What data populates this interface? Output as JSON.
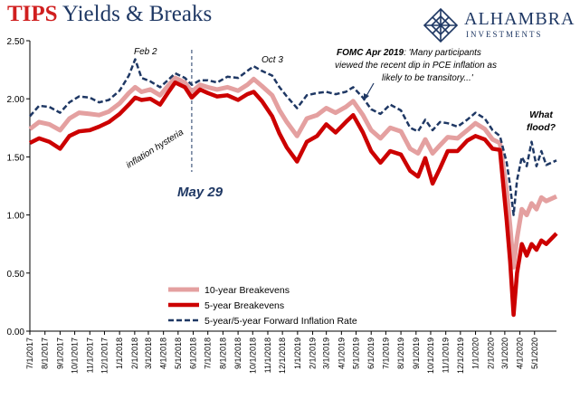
{
  "title": {
    "part1": "TIPS",
    "part2": "Yields & Breaks"
  },
  "logo": {
    "name": "ALHAMBRA",
    "sub": "INVESTMENTS",
    "icon": "diamond-lattice-icon"
  },
  "colors": {
    "s10": "#e4a0a0",
    "s5": "#cc0000",
    "s5y5y": "#1f3864",
    "axis": "#000000",
    "annot": "#1f3864"
  },
  "chart_data": {
    "type": "line",
    "ylim": [
      0,
      2.5
    ],
    "yticks": [
      "0.00",
      "0.50",
      "1.00",
      "1.50",
      "2.00",
      "2.50"
    ],
    "xticks": [
      "7/1/2017",
      "8/1/2017",
      "9/1/2017",
      "10/1/2017",
      "11/1/2017",
      "12/1/2017",
      "1/1/2018",
      "2/1/2018",
      "3/1/2018",
      "4/1/2018",
      "5/1/2018",
      "6/1/2018",
      "7/1/2018",
      "8/1/2018",
      "9/1/2018",
      "10/1/2018",
      "11/1/2018",
      "12/1/2018",
      "1/1/2019",
      "2/1/2019",
      "3/1/2019",
      "4/1/2019",
      "5/1/2019",
      "6/1/2019",
      "7/1/2019",
      "8/1/2019",
      "9/1/2019",
      "10/1/2019",
      "11/1/2019",
      "12/1/2019",
      "1/1/2020",
      "2/1/2020",
      "3/1/2020",
      "4/1/2020",
      "5/1/2020"
    ],
    "x_end": "2020-06-15",
    "series": [
      {
        "name": "10-year Breakevens",
        "style": "solid-light",
        "points": [
          [
            "2017-07-01",
            1.74
          ],
          [
            "2017-07-20",
            1.8
          ],
          [
            "2017-08-10",
            1.78
          ],
          [
            "2017-09-01",
            1.73
          ],
          [
            "2017-09-20",
            1.83
          ],
          [
            "2017-10-10",
            1.88
          ],
          [
            "2017-11-01",
            1.87
          ],
          [
            "2017-11-20",
            1.86
          ],
          [
            "2017-12-10",
            1.89
          ],
          [
            "2018-01-01",
            1.96
          ],
          [
            "2018-01-20",
            2.05
          ],
          [
            "2018-02-02",
            2.1
          ],
          [
            "2018-02-15",
            2.06
          ],
          [
            "2018-03-05",
            2.08
          ],
          [
            "2018-03-25",
            2.03
          ],
          [
            "2018-04-10",
            2.11
          ],
          [
            "2018-04-25",
            2.18
          ],
          [
            "2018-05-15",
            2.14
          ],
          [
            "2018-05-29",
            2.06
          ],
          [
            "2018-06-15",
            2.12
          ],
          [
            "2018-07-01",
            2.1
          ],
          [
            "2018-07-20",
            2.08
          ],
          [
            "2018-08-10",
            2.1
          ],
          [
            "2018-09-01",
            2.07
          ],
          [
            "2018-09-20",
            2.12
          ],
          [
            "2018-10-03",
            2.17
          ],
          [
            "2018-10-20",
            2.11
          ],
          [
            "2018-11-10",
            2.03
          ],
          [
            "2018-11-25",
            1.9
          ],
          [
            "2018-12-10",
            1.8
          ],
          [
            "2018-12-31",
            1.68
          ],
          [
            "2019-01-20",
            1.83
          ],
          [
            "2019-02-10",
            1.86
          ],
          [
            "2019-03-01",
            1.92
          ],
          [
            "2019-03-20",
            1.88
          ],
          [
            "2019-04-10",
            1.93
          ],
          [
            "2019-04-25",
            1.98
          ],
          [
            "2019-05-15",
            1.86
          ],
          [
            "2019-06-01",
            1.73
          ],
          [
            "2019-06-20",
            1.66
          ],
          [
            "2019-07-10",
            1.75
          ],
          [
            "2019-08-01",
            1.72
          ],
          [
            "2019-08-20",
            1.57
          ],
          [
            "2019-09-05",
            1.53
          ],
          [
            "2019-09-20",
            1.65
          ],
          [
            "2019-10-05",
            1.53
          ],
          [
            "2019-10-20",
            1.6
          ],
          [
            "2019-11-05",
            1.67
          ],
          [
            "2019-11-25",
            1.66
          ],
          [
            "2019-12-15",
            1.73
          ],
          [
            "2020-01-01",
            1.79
          ],
          [
            "2020-01-20",
            1.74
          ],
          [
            "2020-02-05",
            1.65
          ],
          [
            "2020-02-20",
            1.62
          ],
          [
            "2020-03-05",
            1.2
          ],
          [
            "2020-03-12",
            0.9
          ],
          [
            "2020-03-19",
            0.55
          ],
          [
            "2020-03-26",
            0.8
          ],
          [
            "2020-04-05",
            1.05
          ],
          [
            "2020-04-15",
            1.0
          ],
          [
            "2020-04-25",
            1.1
          ],
          [
            "2020-05-05",
            1.05
          ],
          [
            "2020-05-15",
            1.15
          ],
          [
            "2020-05-25",
            1.12
          ],
          [
            "2020-06-15",
            1.16
          ]
        ]
      },
      {
        "name": "5-year Breakevens",
        "style": "solid-heavy",
        "points": [
          [
            "2017-07-01",
            1.62
          ],
          [
            "2017-07-20",
            1.66
          ],
          [
            "2017-08-10",
            1.63
          ],
          [
            "2017-09-01",
            1.57
          ],
          [
            "2017-09-20",
            1.68
          ],
          [
            "2017-10-10",
            1.72
          ],
          [
            "2017-11-01",
            1.73
          ],
          [
            "2017-11-20",
            1.76
          ],
          [
            "2017-12-10",
            1.8
          ],
          [
            "2018-01-01",
            1.87
          ],
          [
            "2018-01-20",
            1.95
          ],
          [
            "2018-02-02",
            2.01
          ],
          [
            "2018-02-15",
            1.99
          ],
          [
            "2018-03-05",
            2.0
          ],
          [
            "2018-03-25",
            1.95
          ],
          [
            "2018-04-10",
            2.05
          ],
          [
            "2018-04-25",
            2.14
          ],
          [
            "2018-05-15",
            2.1
          ],
          [
            "2018-05-29",
            2.01
          ],
          [
            "2018-06-15",
            2.08
          ],
          [
            "2018-07-01",
            2.05
          ],
          [
            "2018-07-20",
            2.02
          ],
          [
            "2018-08-10",
            2.03
          ],
          [
            "2018-09-01",
            1.99
          ],
          [
            "2018-09-20",
            2.04
          ],
          [
            "2018-10-03",
            2.06
          ],
          [
            "2018-10-20",
            1.98
          ],
          [
            "2018-11-10",
            1.85
          ],
          [
            "2018-11-25",
            1.7
          ],
          [
            "2018-12-10",
            1.58
          ],
          [
            "2018-12-31",
            1.46
          ],
          [
            "2019-01-20",
            1.63
          ],
          [
            "2019-02-10",
            1.68
          ],
          [
            "2019-03-01",
            1.78
          ],
          [
            "2019-03-20",
            1.71
          ],
          [
            "2019-04-10",
            1.8
          ],
          [
            "2019-04-25",
            1.86
          ],
          [
            "2019-05-15",
            1.71
          ],
          [
            "2019-06-01",
            1.55
          ],
          [
            "2019-06-20",
            1.45
          ],
          [
            "2019-07-10",
            1.55
          ],
          [
            "2019-08-01",
            1.52
          ],
          [
            "2019-08-20",
            1.38
          ],
          [
            "2019-09-05",
            1.33
          ],
          [
            "2019-09-20",
            1.49
          ],
          [
            "2019-10-05",
            1.27
          ],
          [
            "2019-10-20",
            1.4
          ],
          [
            "2019-11-05",
            1.55
          ],
          [
            "2019-11-25",
            1.55
          ],
          [
            "2019-12-15",
            1.64
          ],
          [
            "2020-01-01",
            1.68
          ],
          [
            "2020-01-20",
            1.65
          ],
          [
            "2020-02-05",
            1.57
          ],
          [
            "2020-02-20",
            1.56
          ],
          [
            "2020-03-05",
            0.95
          ],
          [
            "2020-03-12",
            0.6
          ],
          [
            "2020-03-19",
            0.14
          ],
          [
            "2020-03-26",
            0.5
          ],
          [
            "2020-04-05",
            0.75
          ],
          [
            "2020-04-15",
            0.65
          ],
          [
            "2020-04-25",
            0.75
          ],
          [
            "2020-05-05",
            0.7
          ],
          [
            "2020-05-15",
            0.78
          ],
          [
            "2020-05-25",
            0.75
          ],
          [
            "2020-06-15",
            0.84
          ]
        ]
      },
      {
        "name": "5-year/5-year Forward Inflation Rate",
        "style": "dashed",
        "points": [
          [
            "2017-07-01",
            1.85
          ],
          [
            "2017-07-20",
            1.94
          ],
          [
            "2017-08-10",
            1.93
          ],
          [
            "2017-09-01",
            1.88
          ],
          [
            "2017-09-20",
            1.97
          ],
          [
            "2017-10-10",
            2.02
          ],
          [
            "2017-11-01",
            2.01
          ],
          [
            "2017-11-20",
            1.97
          ],
          [
            "2017-12-10",
            1.99
          ],
          [
            "2018-01-01",
            2.07
          ],
          [
            "2018-01-20",
            2.2
          ],
          [
            "2018-02-02",
            2.34
          ],
          [
            "2018-02-15",
            2.18
          ],
          [
            "2018-03-05",
            2.15
          ],
          [
            "2018-03-25",
            2.1
          ],
          [
            "2018-04-10",
            2.16
          ],
          [
            "2018-04-25",
            2.22
          ],
          [
            "2018-05-15",
            2.18
          ],
          [
            "2018-05-29",
            2.12
          ],
          [
            "2018-06-15",
            2.16
          ],
          [
            "2018-07-01",
            2.16
          ],
          [
            "2018-07-20",
            2.14
          ],
          [
            "2018-08-10",
            2.19
          ],
          [
            "2018-09-01",
            2.18
          ],
          [
            "2018-09-20",
            2.24
          ],
          [
            "2018-10-03",
            2.28
          ],
          [
            "2018-10-20",
            2.24
          ],
          [
            "2018-11-10",
            2.2
          ],
          [
            "2018-11-25",
            2.1
          ],
          [
            "2018-12-10",
            2.02
          ],
          [
            "2018-12-31",
            1.92
          ],
          [
            "2019-01-20",
            2.03
          ],
          [
            "2019-02-10",
            2.05
          ],
          [
            "2019-03-01",
            2.06
          ],
          [
            "2019-03-20",
            2.04
          ],
          [
            "2019-04-10",
            2.06
          ],
          [
            "2019-04-25",
            2.1
          ],
          [
            "2019-05-15",
            2.01
          ],
          [
            "2019-06-01",
            1.91
          ],
          [
            "2019-06-20",
            1.87
          ],
          [
            "2019-07-10",
            1.95
          ],
          [
            "2019-08-01",
            1.9
          ],
          [
            "2019-08-20",
            1.75
          ],
          [
            "2019-09-05",
            1.72
          ],
          [
            "2019-09-20",
            1.82
          ],
          [
            "2019-10-05",
            1.73
          ],
          [
            "2019-10-20",
            1.8
          ],
          [
            "2019-11-05",
            1.79
          ],
          [
            "2019-11-25",
            1.76
          ],
          [
            "2019-12-15",
            1.82
          ],
          [
            "2020-01-01",
            1.88
          ],
          [
            "2020-01-20",
            1.83
          ],
          [
            "2020-02-05",
            1.73
          ],
          [
            "2020-02-20",
            1.68
          ],
          [
            "2020-03-05",
            1.45
          ],
          [
            "2020-03-12",
            1.25
          ],
          [
            "2020-03-19",
            1.0
          ],
          [
            "2020-03-26",
            1.3
          ],
          [
            "2020-04-05",
            1.5
          ],
          [
            "2020-04-15",
            1.42
          ],
          [
            "2020-04-25",
            1.63
          ],
          [
            "2020-05-05",
            1.42
          ],
          [
            "2020-05-15",
            1.55
          ],
          [
            "2020-05-25",
            1.43
          ],
          [
            "2020-06-15",
            1.47
          ]
        ]
      }
    ],
    "legend": {
      "position": "bottom-left"
    },
    "vline": {
      "date": "2018-05-29",
      "style": "dashed"
    },
    "annotations": [
      {
        "id": "feb2",
        "text": "Feb 2"
      },
      {
        "id": "oct3",
        "text": "Oct 3"
      },
      {
        "id": "hyst",
        "text": "inflation hysteria"
      },
      {
        "id": "may29",
        "text": "May 29"
      },
      {
        "id": "fomc_label",
        "text": "FOMC Apr 2019"
      },
      {
        "id": "fomc_quote1",
        "text": ": 'Many participants"
      },
      {
        "id": "fomc_quote2",
        "text": "viewed the recent dip in PCE inflation as"
      },
      {
        "id": "fomc_quote3",
        "text": "likely to be transitory...'"
      },
      {
        "id": "whatflood1",
        "text": "What"
      },
      {
        "id": "whatflood2",
        "text": "flood?"
      }
    ]
  }
}
